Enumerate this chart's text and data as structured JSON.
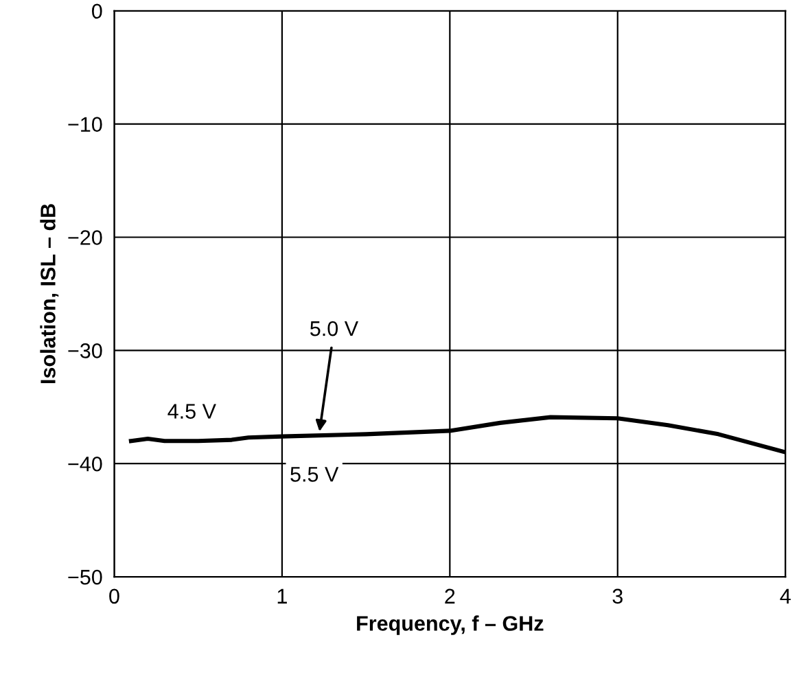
{
  "chart_data": {
    "type": "line",
    "xlabel": "Frequency, f – GHz",
    "ylabel": "Isolation, ISL – dB",
    "xlim": [
      0,
      4
    ],
    "xticks": [
      0,
      1,
      2,
      3,
      4
    ],
    "ylim": [
      -50,
      0
    ],
    "yticks": [
      0,
      -10,
      -20,
      -30,
      -40,
      -50
    ],
    "grid": true,
    "line_style": "solid",
    "series": [
      {
        "color": "#000000",
        "x": [
          0.1,
          0.2,
          0.3,
          0.5,
          0.7,
          0.8,
          1.0,
          1.5,
          2.0,
          2.3,
          2.6,
          3.0,
          3.3,
          3.6,
          4.0
        ],
        "values": [
          -38.0,
          -37.8,
          -38.0,
          -38.0,
          -37.9,
          -37.7,
          -37.6,
          -37.4,
          -37.1,
          -36.4,
          -35.9,
          -36.0,
          -36.6,
          -37.4,
          -39.0
        ]
      }
    ],
    "annotations": [
      {
        "text": "4.5 V",
        "x": 0.6,
        "y": -37.9
      },
      {
        "text": "5.0 V",
        "x": 1.22,
        "y": -37.5
      },
      {
        "text": "5.5 V",
        "x": 1.5,
        "y": -37.4
      }
    ]
  }
}
